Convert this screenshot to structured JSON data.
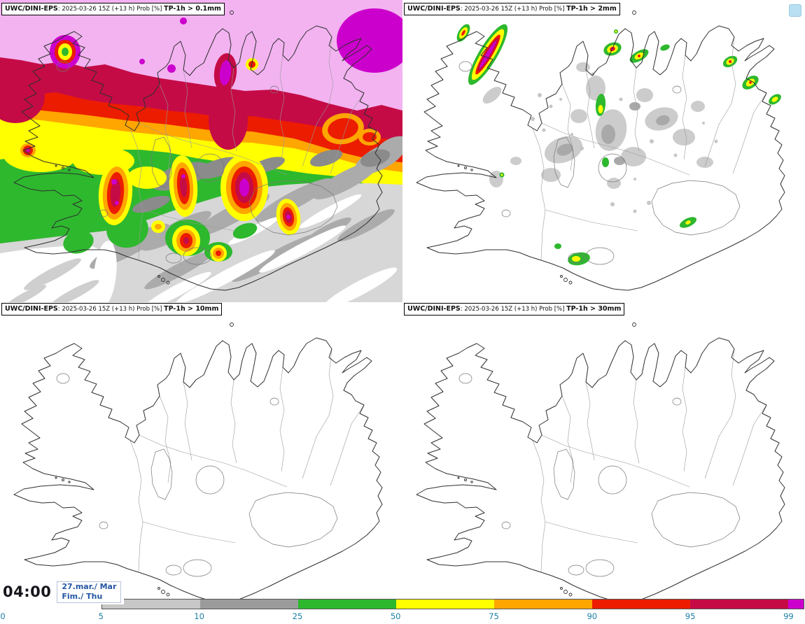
{
  "panels": [
    {
      "model": "UWC/DINI-EPS",
      "meta": ": 2025-03-26 15Z (+13 h) Prob [%] ",
      "threshold": "TP-1h > 0.1mm"
    },
    {
      "model": "UWC/DINI-EPS",
      "meta": ": 2025-03-26 15Z (+13 h) Prob [%] ",
      "threshold": "TP-1h > 2mm"
    },
    {
      "model": "UWC/DINI-EPS",
      "meta": ": 2025-03-26 15Z (+13 h) Prob [%] ",
      "threshold": "TP-1h > 10mm"
    },
    {
      "model": "UWC/DINI-EPS",
      "meta": ": 2025-03-26 15Z (+13 h) Prob [%] ",
      "threshold": "TP-1h > 30mm"
    }
  ],
  "footer": {
    "time": "04:00",
    "date_line1": "27.mar./ Mar",
    "date_line2": "Fim./ Thu"
  },
  "colorbar": {
    "ticks": [
      "0",
      "5",
      "10",
      "25",
      "50",
      "75",
      "90",
      "95",
      "99"
    ],
    "segment_colors": [
      "#c7c7c7",
      "#9b9b9b",
      "#2eb82e",
      "#ffff00",
      "#ffa600",
      "#ec1c00",
      "#c50b46",
      "#cc00cc"
    ],
    "tick_color": "#1b7fa6"
  },
  "field_palette": [
    "#ffffff",
    "#d7d7d7",
    "#ababab",
    "#8b8b8b",
    "#2eb82e",
    "#ffff00",
    "#ffa600",
    "#ec1c00",
    "#c50b46",
    "#cc00cc",
    "#f2b3f0"
  ]
}
